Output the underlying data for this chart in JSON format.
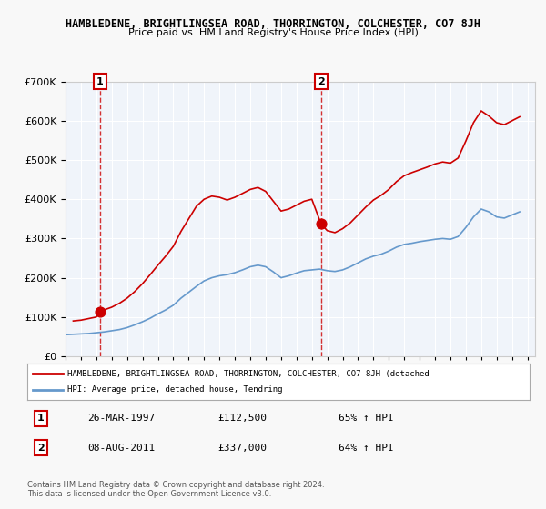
{
  "title": "HAMBLEDENE, BRIGHTLINGSEA ROAD, THORRINGTON, COLCHESTER, CO7 8JH",
  "subtitle": "Price paid vs. HM Land Registry's House Price Index (HPI)",
  "legend_line1": "HAMBLEDENE, BRIGHTLINGSEA ROAD, THORRINGTON, COLCHESTER, CO7 8JH (detached",
  "legend_line2": "HPI: Average price, detached house, Tendring",
  "sale1_date": "26-MAR-1997",
  "sale1_price": 112500,
  "sale1_label": "1",
  "sale1_year": 1997.23,
  "sale2_date": "08-AUG-2011",
  "sale2_price": 337000,
  "sale2_label": "2",
  "sale2_year": 2011.6,
  "annotation1": "26-MAR-1997     £112,500     65% ↑ HPI",
  "annotation2": "08-AUG-2011     £337,000     64% ↑ HPI",
  "footer1": "Contains HM Land Registry data © Crown copyright and database right 2024.",
  "footer2": "This data is licensed under the Open Government Licence v3.0.",
  "ylim": [
    0,
    700000
  ],
  "xlim_start": 1995.0,
  "xlim_end": 2025.5,
  "property_color": "#cc0000",
  "hpi_color": "#6699cc",
  "background_color": "#e8f0f8",
  "plot_bg_color": "#f0f4fa",
  "grid_color": "#ffffff",
  "hpi_data_x": [
    1995.0,
    1995.5,
    1996.0,
    1996.5,
    1997.0,
    1997.5,
    1998.0,
    1998.5,
    1999.0,
    1999.5,
    2000.0,
    2000.5,
    2001.0,
    2001.5,
    2002.0,
    2002.5,
    2003.0,
    2003.5,
    2004.0,
    2004.5,
    2005.0,
    2005.5,
    2006.0,
    2006.5,
    2007.0,
    2007.5,
    2008.0,
    2008.5,
    2009.0,
    2009.5,
    2010.0,
    2010.5,
    2011.0,
    2011.5,
    2012.0,
    2012.5,
    2013.0,
    2013.5,
    2014.0,
    2014.5,
    2015.0,
    2015.5,
    2016.0,
    2016.5,
    2017.0,
    2017.5,
    2018.0,
    2018.5,
    2019.0,
    2019.5,
    2020.0,
    2020.5,
    2021.0,
    2021.5,
    2022.0,
    2022.5,
    2023.0,
    2023.5,
    2024.0,
    2024.5
  ],
  "hpi_data_y": [
    55000,
    56000,
    57000,
    58000,
    60000,
    62000,
    65000,
    68000,
    73000,
    80000,
    88000,
    97000,
    108000,
    118000,
    130000,
    148000,
    163000,
    178000,
    192000,
    200000,
    205000,
    208000,
    213000,
    220000,
    228000,
    232000,
    228000,
    215000,
    200000,
    205000,
    212000,
    218000,
    220000,
    222000,
    218000,
    216000,
    220000,
    228000,
    238000,
    248000,
    255000,
    260000,
    268000,
    278000,
    285000,
    288000,
    292000,
    295000,
    298000,
    300000,
    298000,
    305000,
    328000,
    355000,
    375000,
    368000,
    355000,
    352000,
    360000,
    368000
  ],
  "property_data_x": [
    1995.5,
    1996.0,
    1996.5,
    1997.0,
    1997.23,
    1997.5,
    1998.0,
    1998.5,
    1999.0,
    1999.5,
    2000.0,
    2000.5,
    2001.0,
    2001.5,
    2002.0,
    2002.5,
    2003.0,
    2003.5,
    2004.0,
    2004.5,
    2005.0,
    2005.5,
    2006.0,
    2006.5,
    2007.0,
    2007.5,
    2008.0,
    2008.5,
    2009.0,
    2009.5,
    2010.0,
    2010.5,
    2011.0,
    2011.6,
    2012.0,
    2012.5,
    2013.0,
    2013.5,
    2014.0,
    2014.5,
    2015.0,
    2015.5,
    2016.0,
    2016.5,
    2017.0,
    2017.5,
    2018.0,
    2018.5,
    2019.0,
    2019.5,
    2020.0,
    2020.5,
    2021.0,
    2021.5,
    2022.0,
    2022.5,
    2023.0,
    2023.5,
    2024.0,
    2024.5
  ],
  "property_data_y": [
    90000,
    92000,
    96000,
    100000,
    112500,
    118000,
    125000,
    135000,
    148000,
    165000,
    185000,
    208000,
    232000,
    255000,
    280000,
    318000,
    350000,
    382000,
    400000,
    408000,
    405000,
    398000,
    405000,
    415000,
    425000,
    430000,
    420000,
    395000,
    370000,
    375000,
    385000,
    395000,
    400000,
    337000,
    320000,
    315000,
    325000,
    340000,
    360000,
    380000,
    398000,
    410000,
    425000,
    445000,
    460000,
    468000,
    475000,
    482000,
    490000,
    495000,
    492000,
    505000,
    548000,
    595000,
    625000,
    612000,
    595000,
    590000,
    600000,
    610000
  ]
}
